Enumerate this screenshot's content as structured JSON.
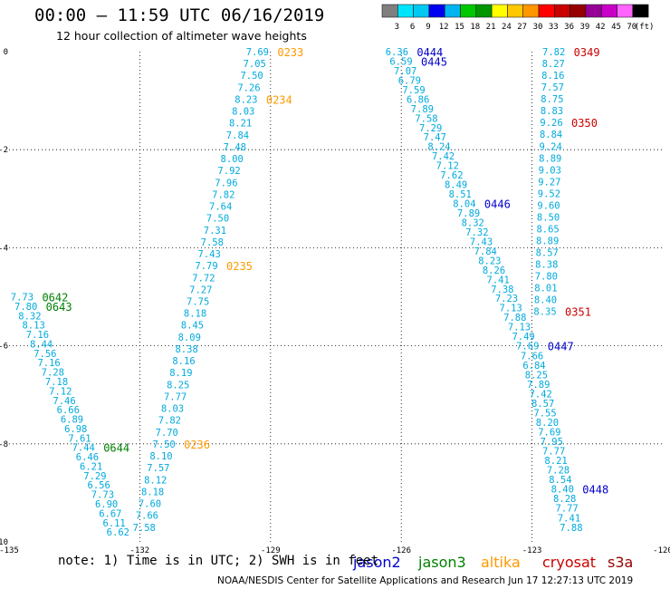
{
  "title": "00:00 – 11:59 UTC 06/16/2019",
  "subtitle": "12 hour collection of altimeter wave heights",
  "note": "note: 1) Time is in UTC; 2) SWH is in feet",
  "credit": "NOAA/NESDIS Center for Satellite Applications and Research   Jun 17 12:27:13 UTC 2019",
  "colorbar": {
    "labels": [
      "3",
      "6",
      "9",
      "12",
      "15",
      "18",
      "21",
      "24",
      "27",
      "30",
      "33",
      "36",
      "39",
      "42",
      "45",
      "70",
      "(ft)"
    ],
    "colors": [
      "#7f7f7f",
      "#00e5ff",
      "#00c8f0",
      "#0000f0",
      "#00b4f0",
      "#00c800",
      "#009600",
      "#ffff00",
      "#ffc800",
      "#ff9600",
      "#ff0000",
      "#c80000",
      "#960000",
      "#960096",
      "#c800c8",
      "#ff64ff",
      "#000000"
    ]
  },
  "map": {
    "x_ticks": [
      "-135",
      "-132",
      "-129",
      "-126",
      "-123",
      "-120"
    ],
    "y_ticks": [
      "0",
      "-2",
      "-4",
      "-6",
      "-8",
      "-10"
    ],
    "lon_range": [
      -135,
      -120
    ],
    "lat_range": [
      -10,
      0
    ]
  },
  "legend": [
    {
      "label": "jason2",
      "color": "#0000cc"
    },
    {
      "label": "jason3",
      "color": "#008000"
    },
    {
      "label": "altika",
      "color": "#ff9900"
    },
    {
      "label": "cryosat",
      "color": "#cc0000"
    },
    {
      "label": "s3a",
      "color": "#990000"
    }
  ],
  "chart_data": {
    "type": "scatter",
    "title": "00:00 – 11:59 UTC 06/16/2019",
    "subtitle": "12 hour collection of altimeter wave heights",
    "unit": "ft",
    "xlim": [
      -135,
      -120
    ],
    "ylim": [
      -10,
      0
    ],
    "grid": true,
    "legend_placement": "bottom",
    "value_color": "#00aadd",
    "tracks": [
      {
        "satellite": "altika",
        "color": "#ff9900",
        "x_start": -129.3,
        "x_end": -131.9,
        "y_start": 0.0,
        "y_end": -9.7,
        "values": [
          "7.69",
          "7.05",
          "7.50",
          "7.26",
          "8.23",
          "8.03",
          "8.21",
          "7.84",
          "7.48",
          "8.00",
          "7.92",
          "7.96",
          "7.82",
          "7.64",
          "7.50",
          "7.31",
          "7.58",
          "7.43",
          "7.79",
          "7.72",
          "7.27",
          "7.75",
          "8.18",
          "8.45",
          "8.09",
          "8.38",
          "8.16",
          "8.19",
          "8.25",
          "7.77",
          "8.03",
          "7.82",
          "7.70",
          "7.50",
          "8.10",
          "7.57",
          "8.12",
          "8.18",
          "7.60",
          "7.66",
          "7.58"
        ],
        "time_labels": [
          {
            "text": "0233",
            "index": 0
          },
          {
            "text": "0234",
            "index": 4
          },
          {
            "text": "0235",
            "index": 18
          },
          {
            "text": "0236",
            "index": 33
          }
        ]
      },
      {
        "satellite": "jason2",
        "color": "#0000cc",
        "x_start": -126.1,
        "x_end": -123.1,
        "y_start": 0.0,
        "y_end": -6.0,
        "values": [
          "6.36",
          "6.59",
          "7.07",
          "6.79",
          "7.59",
          "6.86",
          "7.89",
          "7.58",
          "7.29",
          "7.47",
          "8.24",
          "7.42",
          "7.12",
          "7.62",
          "8.49",
          "8.51",
          "8.04",
          "7.89",
          "8.32",
          "7.32",
          "7.43",
          "7.84",
          "8.23",
          "8.26",
          "7.41",
          "7.38",
          "7.23",
          "7.13",
          "7.88",
          "7.13",
          "7.49",
          "7.69"
        ],
        "time_labels": [
          {
            "text": "0444",
            "index": 0
          },
          {
            "text": "0445",
            "index": 1
          },
          {
            "text": "0446",
            "index": 16
          },
          {
            "text": "0447",
            "index": 31
          }
        ]
      },
      {
        "satellite": "jason2",
        "color": "#0000cc",
        "x_start": -123.0,
        "x_end": -122.1,
        "y_start": -6.2,
        "y_end": -9.7,
        "values": [
          "7.66",
          "6.84",
          "8.25",
          "7.89",
          "7.42",
          "8.57",
          "7.55",
          "8.20",
          "7.69",
          "7.95",
          "7.77",
          "8.21",
          "7.28",
          "8.54",
          "8.40",
          "8.28",
          "7.77",
          "7.41",
          "7.88"
        ],
        "time_labels": [
          {
            "text": "0448",
            "index": 14
          }
        ]
      },
      {
        "satellite": "cryosat",
        "color": "#cc0000",
        "x_start": -122.5,
        "x_end": -122.7,
        "y_start": 0.0,
        "y_end": -5.3,
        "values": [
          "7.82",
          "8.27",
          "8.16",
          "7.57",
          "8.75",
          "8.83",
          "9.26",
          "8.84",
          "9.24",
          "8.89",
          "9.03",
          "9.27",
          "9.52",
          "9.60",
          "8.50",
          "8.65",
          "8.89",
          "8.57",
          "8.38",
          "7.80",
          "8.01",
          "8.40",
          "8.35"
        ],
        "time_labels": [
          {
            "text": "0349",
            "index": 0
          },
          {
            "text": "0350",
            "index": 6
          },
          {
            "text": "0351",
            "index": 22
          }
        ]
      },
      {
        "satellite": "jason3",
        "color": "#008000",
        "x_start": -134.7,
        "x_end": -132.5,
        "y_start": -5.0,
        "y_end": -9.8,
        "values": [
          "7.73",
          "7.80",
          "8.32",
          "8.13",
          "7.16",
          "8.44",
          "7.56",
          "7.16",
          "7.28",
          "7.18",
          "7.12",
          "7.46",
          "6.66",
          "6.89",
          "6.98",
          "7.61",
          "7.44",
          "6.46",
          "6.21",
          "7.29",
          "6.56",
          "7.73",
          "6.90",
          "6.67",
          "6.11",
          "6.62"
        ],
        "time_labels": [
          {
            "text": "0642",
            "index": 0
          },
          {
            "text": "0643",
            "index": 1
          },
          {
            "text": "0644",
            "index": 16
          }
        ]
      }
    ]
  }
}
